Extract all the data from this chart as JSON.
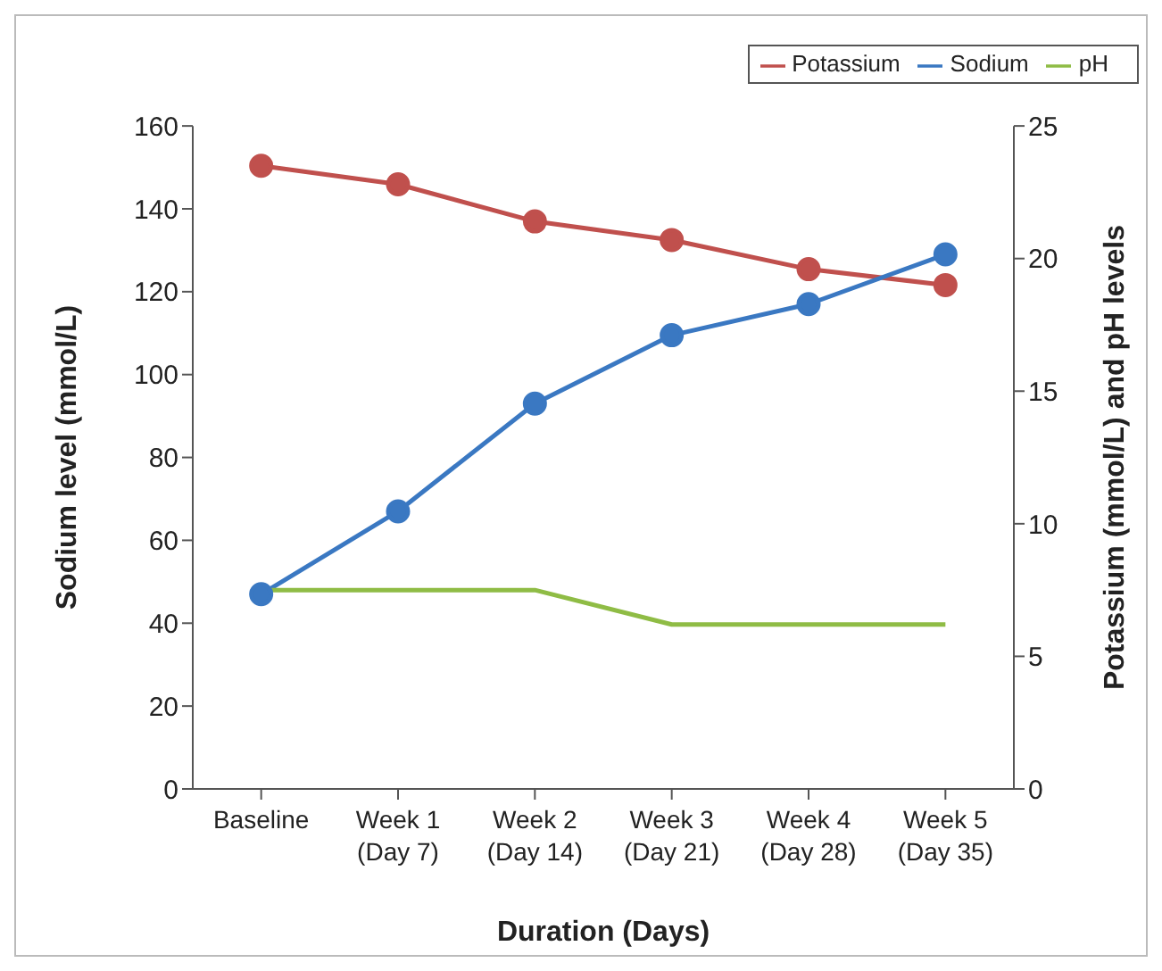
{
  "chart_data": {
    "type": "line",
    "xlabel": "Duration (Days)",
    "ylabel": "Sodium level (mmol/L)",
    "y2label": "Potassium (mmol/L) and pH levels",
    "categories": [
      "Baseline",
      "Week 1\n(Day 7)",
      "Week 2\n(Day 14)",
      "Week 3\n(Day 21)",
      "Week 4\n(Day 28)",
      "Week 5\n(Day 35)"
    ],
    "series": [
      {
        "name": "Potassium",
        "color": "#c0504d",
        "axis": "y2",
        "marker": "circle",
        "values": [
          23.5,
          22.8,
          21.4,
          20.7,
          19.6,
          19.0
        ]
      },
      {
        "name": "Sodium",
        "color": "#3a78c2",
        "marker": "circle",
        "values": [
          47,
          67,
          93,
          109.5,
          117,
          129
        ]
      },
      {
        "name": "pH",
        "color": "#8fbc45",
        "axis": "y2",
        "marker": "none",
        "values": [
          7.5,
          7.5,
          7.5,
          6.2,
          6.2,
          6.2
        ]
      }
    ],
    "ylim": [
      0,
      160
    ],
    "yticks": [
      0,
      20,
      40,
      60,
      80,
      100,
      120,
      140,
      160
    ],
    "y2lim": [
      0,
      25
    ],
    "y2ticks": [
      0,
      5,
      10,
      15,
      20,
      25
    ],
    "legend": "top right",
    "line_style": "solid"
  }
}
